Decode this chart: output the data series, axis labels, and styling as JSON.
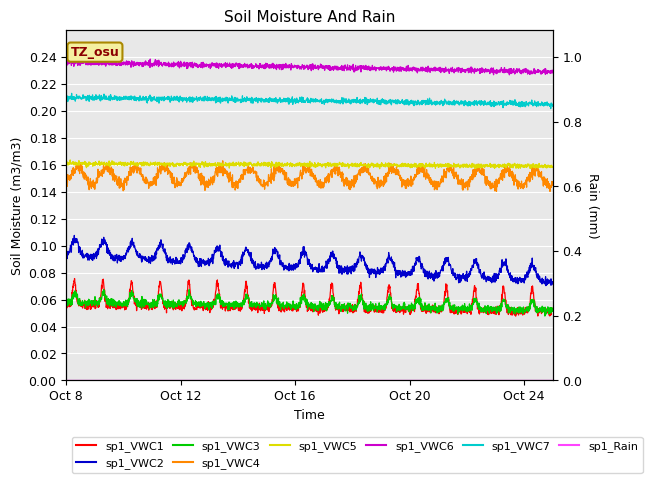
{
  "title": "Soil Moisture And Rain",
  "xlabel": "Time",
  "ylabel_left": "Soil Moisture (m3/m3)",
  "ylabel_right": "Rain (mm)",
  "xlim_days": [
    0,
    17
  ],
  "ylim_left": [
    0,
    0.26
  ],
  "ylim_right": [
    0,
    1.0833
  ],
  "x_ticks_labels": [
    "Oct 8",
    "Oct 12",
    "Oct 16",
    "Oct 20",
    "Oct 24"
  ],
  "x_ticks_positions": [
    0,
    4,
    8,
    12,
    16
  ],
  "y_ticks_left": [
    0.0,
    0.02,
    0.04,
    0.06,
    0.08,
    0.1,
    0.12,
    0.14,
    0.16,
    0.18,
    0.2,
    0.22,
    0.24
  ],
  "y_ticks_right": [
    0.0,
    0.2,
    0.4,
    0.6,
    0.8,
    1.0
  ],
  "background_color": "#e8e8e8",
  "annotation_text": "TZ_osu",
  "annotation_color": "#8b0000",
  "colors": {
    "sp1_VWC1": "#ff0000",
    "sp1_VWC2": "#0000cc",
    "sp1_VWC3": "#00cc00",
    "sp1_VWC4": "#ff8800",
    "sp1_VWC5": "#dddd00",
    "sp1_VWC6": "#cc00cc",
    "sp1_VWC7": "#00cccc",
    "sp1_Rain": "#ff44ff"
  },
  "legend_row1": [
    "sp1_VWC1",
    "sp1_VWC2",
    "sp1_VWC3",
    "sp1_VWC4",
    "sp1_VWC5",
    "sp1_VWC6"
  ],
  "legend_row2": [
    "sp1_VWC7",
    "sp1_Rain"
  ]
}
